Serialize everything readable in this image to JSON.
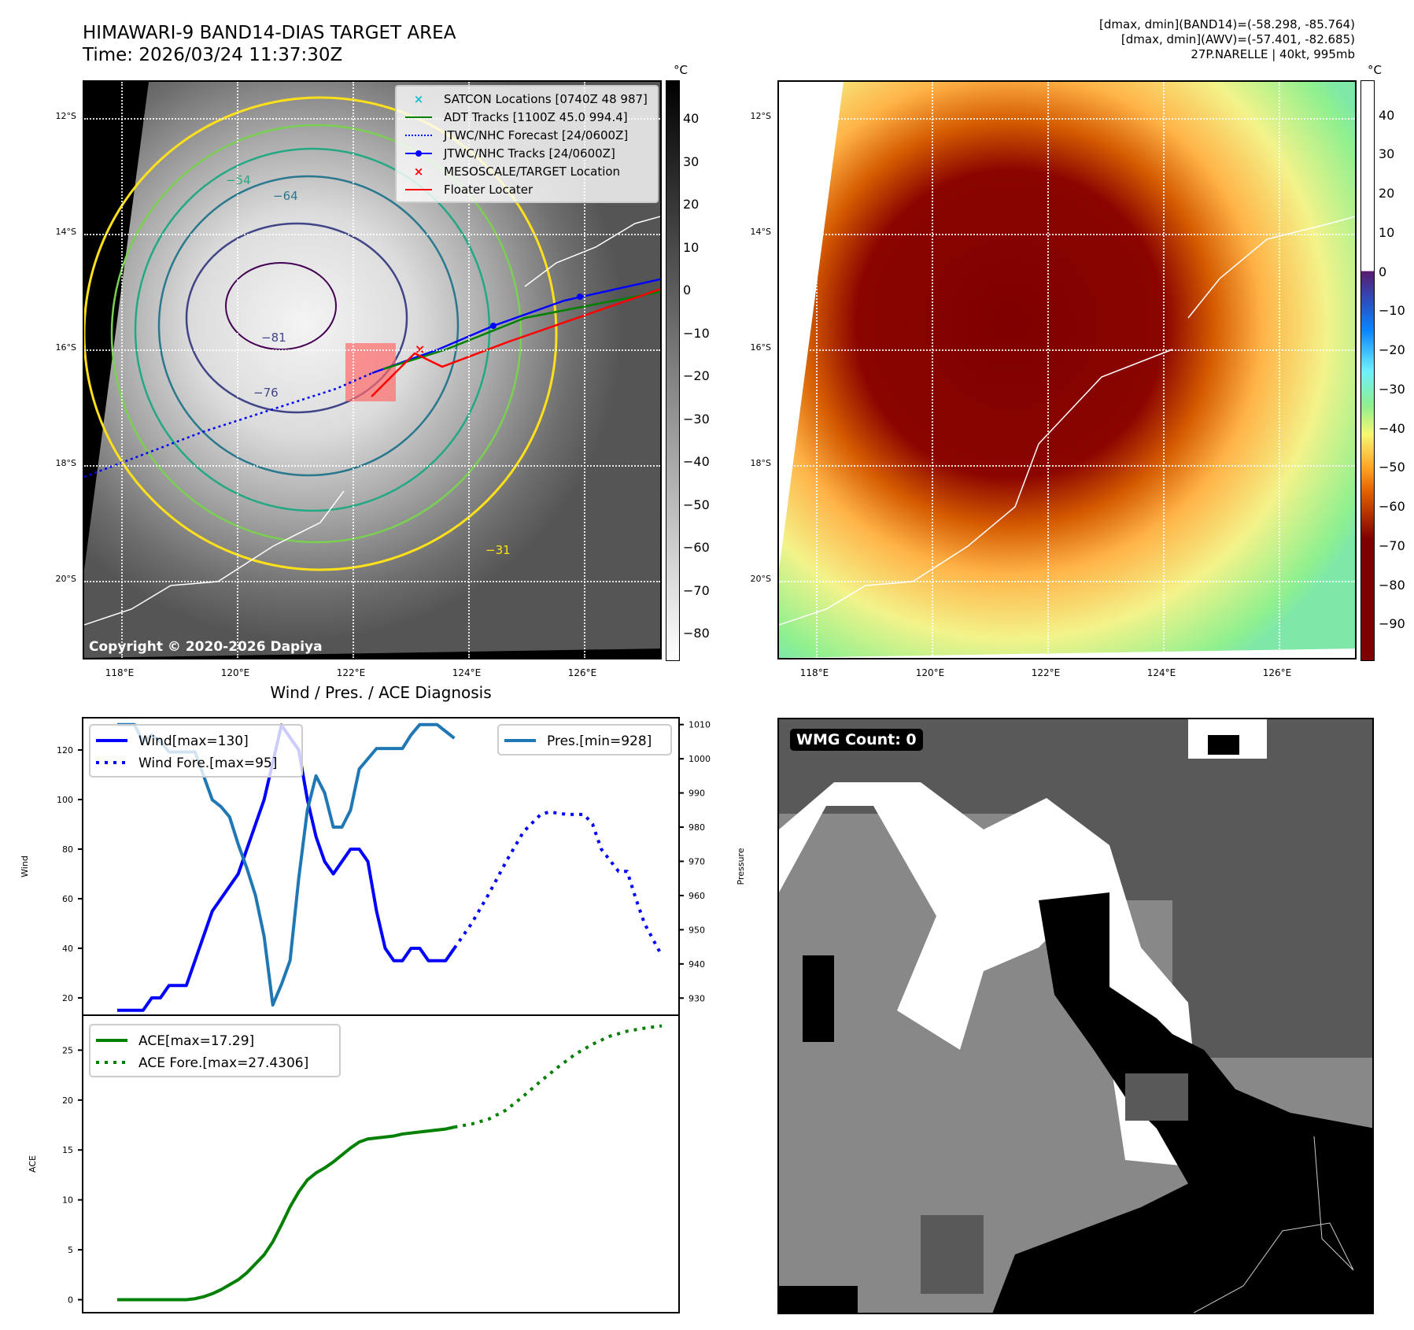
{
  "header": {
    "title_line1": "HIMAWARI-9 BAND14-DIAS TARGET AREA",
    "title_line2": "Time: 2026/03/24 11:37:30Z",
    "info_line1": "[dmax, dmin](BAND14)=(-58.298, -85.764)",
    "info_line2": "[dmax, dmin](AWV)=(-57.401, -82.685)",
    "info_line3": "27P.NARELLE | 40kt, 995mb"
  },
  "map_axes": {
    "lat_ticks": [
      "12°S",
      "14°S",
      "16°S",
      "18°S",
      "20°S"
    ],
    "lon_ticks": [
      "118°E",
      "120°E",
      "122°E",
      "124°E",
      "126°E"
    ]
  },
  "ir_panel": {
    "colorbar_unit": "°C",
    "colorbar_ticks": [
      "40",
      "30",
      "20",
      "10",
      "0",
      "−10",
      "−20",
      "−30",
      "−40",
      "−50",
      "−60",
      "−70",
      "−80"
    ],
    "contour_labels": [
      "−31",
      "−54",
      "−64",
      "−81",
      "−76",
      "−31",
      "−31"
    ],
    "copyright": "Copyright © 2020-2026 Dapiya",
    "legend": [
      {
        "label": "SATCON Locations [0740Z 48 987]",
        "color": "#17becf",
        "marker": "x"
      },
      {
        "label": "ADT Tracks [1100Z 45.0 994.4]",
        "color": "#008000",
        "marker": "line"
      },
      {
        "label": "JTWC/NHC Forecast [24/0600Z]",
        "color": "#0000ff",
        "marker": "dotted"
      },
      {
        "label": "JTWC/NHC Tracks [24/0600Z]",
        "color": "#0000ff",
        "marker": "line-dot"
      },
      {
        "label": "MESOSCALE/TARGET Location",
        "color": "#ff0000",
        "marker": "x"
      },
      {
        "label": "Floater Locater",
        "color": "#ff0000",
        "marker": "line"
      }
    ]
  },
  "awv_panel": {
    "colorbar_unit": "°C",
    "colorbar_ticks": [
      "40",
      "30",
      "20",
      "10",
      "0",
      "−10",
      "−20",
      "−30",
      "−40",
      "−50",
      "−60",
      "−70",
      "−80",
      "−90"
    ]
  },
  "wmg_panel": {
    "label": "WMG Count: 0"
  },
  "chart_data": [
    {
      "type": "line",
      "title": "Wind / Pres. / ACE Diagnosis",
      "xlabel": "",
      "ylabel": "Wind",
      "ylabel_right": "Pressure",
      "ylim": [
        13,
        133
      ],
      "ylim_right": [
        925,
        1012
      ],
      "yticks": [
        20,
        40,
        60,
        80,
        100,
        120
      ],
      "yticks_right": [
        930,
        940,
        950,
        960,
        970,
        980,
        990,
        1000,
        1010
      ],
      "legend_left": [
        "Wind[max=130]",
        "Wind Fore.[max=95]"
      ],
      "legend_right": [
        "Pres.[min=928]"
      ],
      "series": [
        {
          "name": "Wind",
          "style": "solid",
          "color": "#0000ff",
          "axis": "left",
          "x": [
            0,
            1,
            2,
            3,
            4,
            5,
            6,
            7,
            8,
            9,
            10,
            11,
            12,
            13,
            14,
            15,
            16,
            17,
            18,
            19,
            20,
            21,
            22,
            23,
            24,
            25,
            26,
            27,
            28,
            29,
            30,
            31,
            32,
            33,
            34,
            35,
            36,
            37,
            38,
            39
          ],
          "values": [
            15,
            15,
            15,
            15,
            20,
            20,
            25,
            25,
            25,
            35,
            45,
            55,
            60,
            65,
            70,
            80,
            90,
            100,
            115,
            130,
            125,
            120,
            100,
            85,
            75,
            70,
            75,
            80,
            80,
            75,
            55,
            40,
            35,
            35,
            40,
            40,
            35,
            35,
            35,
            40
          ]
        },
        {
          "name": "Wind Fore.",
          "style": "dotted",
          "color": "#0000ff",
          "axis": "left",
          "x": [
            39,
            41,
            43,
            45,
            47,
            49,
            50,
            52,
            54,
            55,
            56,
            58,
            59,
            60,
            61,
            63
          ],
          "values": [
            40,
            50,
            62,
            75,
            87,
            94,
            95,
            94,
            94,
            90,
            80,
            71,
            71,
            60,
            50,
            37
          ]
        },
        {
          "name": "Pres.",
          "style": "solid",
          "color": "#1f77b4",
          "axis": "right",
          "x": [
            0,
            1,
            2,
            3,
            4,
            5,
            6,
            7,
            8,
            9,
            10,
            11,
            12,
            13,
            14,
            15,
            16,
            17,
            18,
            19,
            20,
            21,
            22,
            23,
            24,
            25,
            26,
            27,
            28,
            29,
            30,
            31,
            32,
            33,
            34,
            35,
            36,
            37,
            38,
            39
          ],
          "values": [
            1010,
            1010,
            1010,
            1005,
            1007,
            1005,
            1002,
            1002,
            1002,
            1002,
            995,
            988,
            986,
            983,
            975,
            968,
            960,
            948,
            928,
            934,
            941,
            965,
            985,
            995,
            990,
            980,
            980,
            985,
            997,
            1000,
            1003,
            1003,
            1003,
            1003,
            1007,
            1010,
            1010,
            1010,
            1008,
            1006
          ]
        }
      ]
    },
    {
      "type": "line",
      "xlabel": "",
      "ylabel": "ACE",
      "ylim": [
        -1.3,
        28.5
      ],
      "yticks": [
        0,
        5,
        10,
        15,
        20,
        25
      ],
      "legend": [
        "ACE[max=17.29]",
        "ACE Fore.[max=27.4306]"
      ],
      "series": [
        {
          "name": "ACE",
          "style": "solid",
          "color": "#008000",
          "x": [
            0,
            2,
            4,
            6,
            8,
            9,
            10,
            11,
            12,
            13,
            14,
            15,
            16,
            17,
            18,
            19,
            20,
            21,
            22,
            23,
            24,
            25,
            26,
            27,
            28,
            29,
            30,
            31,
            32,
            33,
            34,
            35,
            36,
            37,
            38,
            39
          ],
          "values": [
            0,
            0,
            0,
            0,
            0,
            0.1,
            0.3,
            0.6,
            1.0,
            1.5,
            2.0,
            2.7,
            3.6,
            4.5,
            5.8,
            7.5,
            9.3,
            10.8,
            12.0,
            12.7,
            13.2,
            13.8,
            14.5,
            15.2,
            15.8,
            16.1,
            16.2,
            16.3,
            16.4,
            16.6,
            16.7,
            16.8,
            16.9,
            17.0,
            17.1,
            17.29
          ]
        },
        {
          "name": "ACE Fore.",
          "style": "dotted",
          "color": "#008000",
          "x": [
            39,
            41,
            43,
            45,
            47,
            49,
            51,
            53,
            55,
            57,
            59,
            61,
            63
          ],
          "values": [
            17.29,
            17.6,
            18.1,
            19.0,
            20.4,
            21.9,
            23.3,
            24.6,
            25.6,
            26.4,
            26.9,
            27.2,
            27.43
          ]
        }
      ]
    }
  ]
}
